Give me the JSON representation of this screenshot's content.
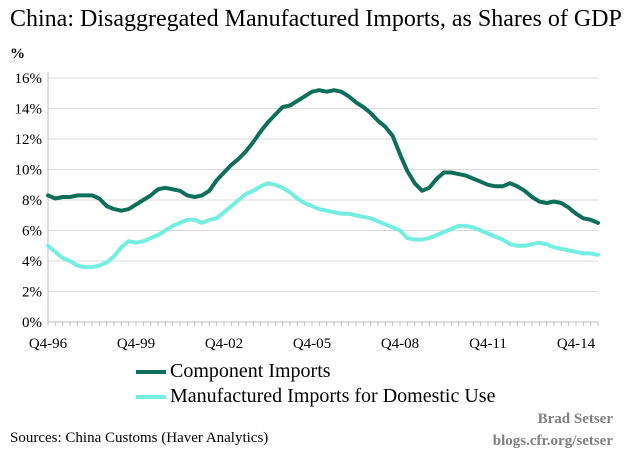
{
  "chart_data": {
    "type": "line",
    "title": "China: Disaggregated Manufactured Imports, as Shares of GDP",
    "ylabel": "%",
    "xlabel": "",
    "ylim": [
      0,
      16
    ],
    "yticks": [
      "0%",
      "2%",
      "4%",
      "6%",
      "8%",
      "10%",
      "12%",
      "14%",
      "16%"
    ],
    "xtick_labels": [
      "Q4-96",
      "Q4-99",
      "Q4-02",
      "Q4-05",
      "Q4-08",
      "Q4-11",
      "Q4-14"
    ],
    "x": [
      "Q4-96",
      "Q1-97",
      "Q2-97",
      "Q3-97",
      "Q4-97",
      "Q1-98",
      "Q2-98",
      "Q3-98",
      "Q4-98",
      "Q1-99",
      "Q2-99",
      "Q3-99",
      "Q4-99",
      "Q1-00",
      "Q2-00",
      "Q3-00",
      "Q4-00",
      "Q1-01",
      "Q2-01",
      "Q3-01",
      "Q4-01",
      "Q1-02",
      "Q2-02",
      "Q3-02",
      "Q4-02",
      "Q1-03",
      "Q2-03",
      "Q3-03",
      "Q4-03",
      "Q1-04",
      "Q2-04",
      "Q3-04",
      "Q4-04",
      "Q1-05",
      "Q2-05",
      "Q3-05",
      "Q4-05",
      "Q1-06",
      "Q2-06",
      "Q3-06",
      "Q4-06",
      "Q1-07",
      "Q2-07",
      "Q3-07",
      "Q4-07",
      "Q1-08",
      "Q2-08",
      "Q3-08",
      "Q4-08",
      "Q1-09",
      "Q2-09",
      "Q3-09",
      "Q4-09",
      "Q1-10",
      "Q2-10",
      "Q3-10",
      "Q4-10",
      "Q1-11",
      "Q2-11",
      "Q3-11",
      "Q4-11",
      "Q1-12",
      "Q2-12",
      "Q3-12",
      "Q4-12",
      "Q1-13",
      "Q2-13",
      "Q3-13",
      "Q4-13",
      "Q1-14",
      "Q2-14",
      "Q3-14",
      "Q4-14",
      "Q1-15",
      "Q2-15",
      "Q3-15"
    ],
    "series": [
      {
        "name": "Component Imports",
        "color": "#0e6e5c",
        "values": [
          8.3,
          8.1,
          8.2,
          8.2,
          8.3,
          8.3,
          8.3,
          8.1,
          7.6,
          7.4,
          7.3,
          7.4,
          7.7,
          8.0,
          8.3,
          8.7,
          8.8,
          8.7,
          8.6,
          8.3,
          8.2,
          8.3,
          8.6,
          9.3,
          9.8,
          10.3,
          10.7,
          11.2,
          11.8,
          12.5,
          13.1,
          13.6,
          14.1,
          14.2,
          14.5,
          14.8,
          15.1,
          15.2,
          15.1,
          15.2,
          15.1,
          14.8,
          14.4,
          14.1,
          13.7,
          13.2,
          12.8,
          12.2,
          11.0,
          9.9,
          9.1,
          8.6,
          8.8,
          9.4,
          9.8,
          9.8,
          9.7,
          9.6,
          9.4,
          9.2,
          9.0,
          8.9,
          8.9,
          9.1,
          8.9,
          8.6,
          8.2,
          7.9,
          7.8,
          7.9,
          7.8,
          7.5,
          7.1,
          6.8,
          6.7,
          6.5
        ]
      },
      {
        "name": "Manufactured Imports for Domestic Use",
        "color": "#74eee0",
        "values": [
          5.0,
          4.6,
          4.2,
          4.0,
          3.7,
          3.6,
          3.6,
          3.7,
          3.9,
          4.3,
          4.9,
          5.3,
          5.2,
          5.3,
          5.5,
          5.7,
          6.0,
          6.3,
          6.5,
          6.7,
          6.7,
          6.5,
          6.7,
          6.8,
          7.2,
          7.6,
          8.0,
          8.4,
          8.6,
          8.9,
          9.1,
          9.0,
          8.8,
          8.5,
          8.1,
          7.8,
          7.6,
          7.4,
          7.3,
          7.2,
          7.1,
          7.1,
          7.0,
          6.9,
          6.8,
          6.6,
          6.4,
          6.2,
          6.0,
          5.5,
          5.4,
          5.4,
          5.5,
          5.7,
          5.9,
          6.1,
          6.3,
          6.3,
          6.2,
          6.0,
          5.8,
          5.6,
          5.4,
          5.1,
          5.0,
          5.0,
          5.1,
          5.2,
          5.1,
          4.9,
          4.8,
          4.7,
          4.6,
          4.5,
          4.5,
          4.4
        ]
      }
    ],
    "legend_position": "bottom-left",
    "grid": "horizontal"
  },
  "source_text": "Sources: China Customs (Haver Analytics)",
  "credit": {
    "author": "Brad Setser",
    "site": "blogs.cfr.org/setser"
  }
}
